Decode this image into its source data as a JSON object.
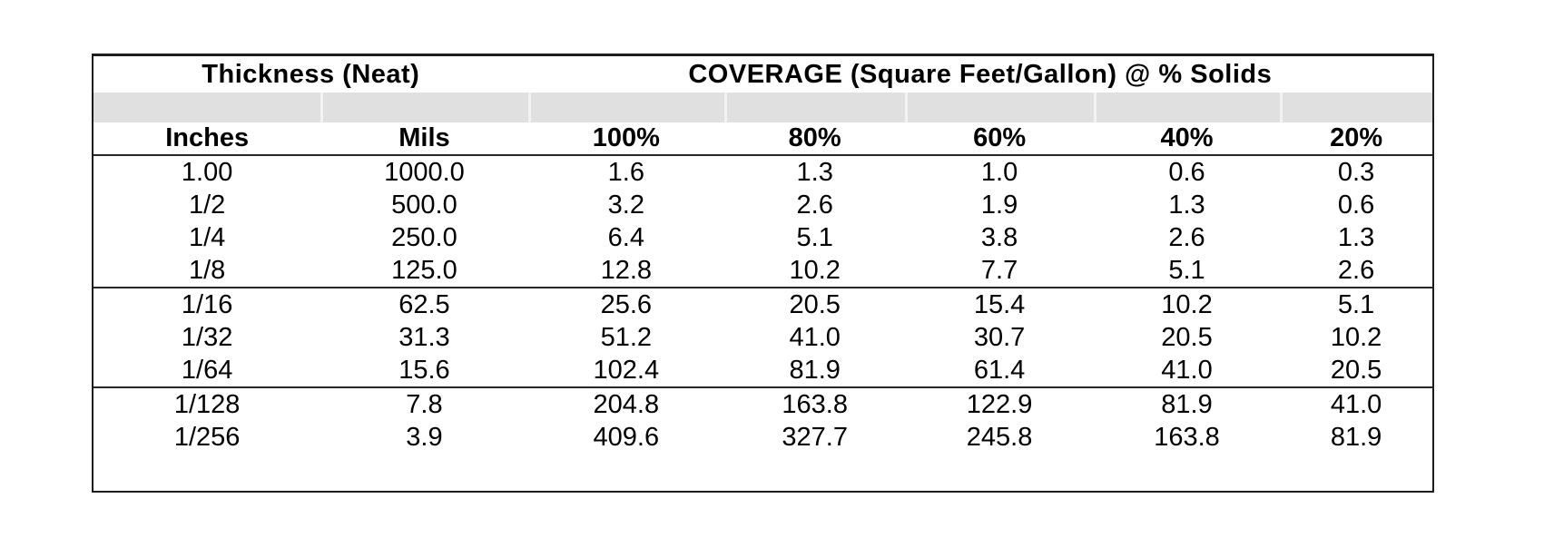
{
  "table": {
    "title_thickness": "Thickness (Neat)",
    "title_coverage": "COVERAGE (Square Feet/Gallon) @ % Solids",
    "column_headers": [
      "Inches",
      "Mils",
      "100%",
      "80%",
      "60%",
      "40%",
      "20%"
    ],
    "groups": [
      [
        [
          "1.00",
          "1000.0",
          "1.6",
          "1.3",
          "1.0",
          "0.6",
          "0.3"
        ],
        [
          "1/2",
          "500.0",
          "3.2",
          "2.6",
          "1.9",
          "1.3",
          "0.6"
        ],
        [
          "1/4",
          "250.0",
          "6.4",
          "5.1",
          "3.8",
          "2.6",
          "1.3"
        ],
        [
          "1/8",
          "125.0",
          "12.8",
          "10.2",
          "7.7",
          "5.1",
          "2.6"
        ]
      ],
      [
        [
          "1/16",
          "62.5",
          "25.6",
          "20.5",
          "15.4",
          "10.2",
          "5.1"
        ],
        [
          "1/32",
          "31.3",
          "51.2",
          "41.0",
          "30.7",
          "20.5",
          "10.2"
        ],
        [
          "1/64",
          "15.6",
          "102.4",
          "81.9",
          "61.4",
          "41.0",
          "20.5"
        ]
      ],
      [
        [
          "1/128",
          "7.8",
          "204.8",
          "163.8",
          "122.9",
          "81.9",
          "41.0"
        ],
        [
          "1/256",
          "3.9",
          "409.6",
          "327.7",
          "245.8",
          "163.8",
          "81.9"
        ]
      ]
    ],
    "colors": {
      "band_fill": "#e0e0e0",
      "border": "#1c1c1c",
      "line": "#262626",
      "text": "#000000",
      "background": "#ffffff"
    }
  },
  "chart_data": {
    "type": "table",
    "title": "COVERAGE (Square Feet/Gallon) @ % Solids",
    "columns": [
      "Inches",
      "Mils",
      "100%",
      "80%",
      "60%",
      "40%",
      "20%"
    ],
    "rows": [
      [
        "1.00",
        "1000.0",
        "1.6",
        "1.3",
        "1.0",
        "0.6",
        "0.3"
      ],
      [
        "1/2",
        "500.0",
        "3.2",
        "2.6",
        "1.9",
        "1.3",
        "0.6"
      ],
      [
        "1/4",
        "250.0",
        "6.4",
        "5.1",
        "3.8",
        "2.6",
        "1.3"
      ],
      [
        "1/8",
        "125.0",
        "12.8",
        "10.2",
        "7.7",
        "5.1",
        "2.6"
      ],
      [
        "1/16",
        "62.5",
        "25.6",
        "20.5",
        "15.4",
        "10.2",
        "5.1"
      ],
      [
        "1/32",
        "31.3",
        "51.2",
        "41.0",
        "30.7",
        "20.5",
        "10.2"
      ],
      [
        "1/64",
        "15.6",
        "102.4",
        "81.9",
        "61.4",
        "41.0",
        "20.5"
      ],
      [
        "1/128",
        "7.8",
        "204.8",
        "163.8",
        "122.9",
        "81.9",
        "41.0"
      ],
      [
        "1/256",
        "3.9",
        "409.6",
        "327.7",
        "245.8",
        "163.8",
        "81.9"
      ]
    ]
  }
}
